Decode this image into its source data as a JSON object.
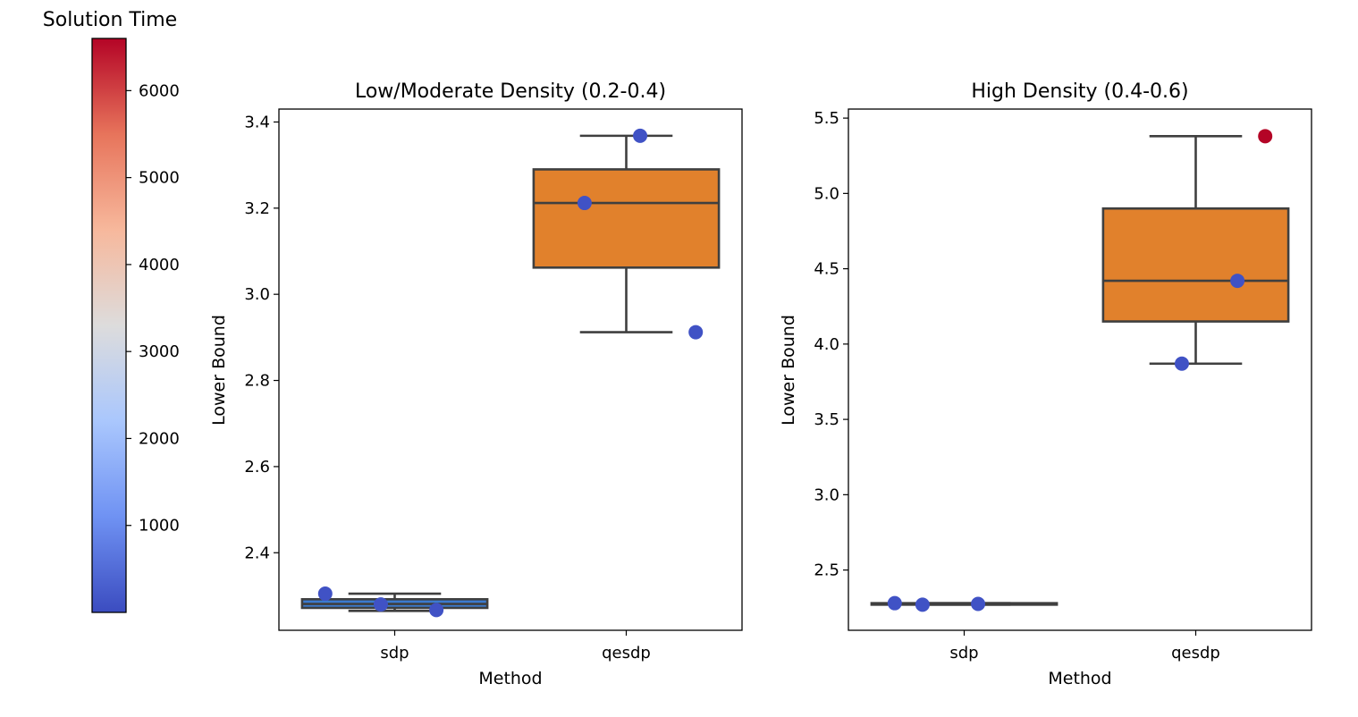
{
  "colorbar": {
    "label": "Solution Time",
    "ticks": [
      1000,
      2000,
      3000,
      4000,
      5000,
      6000
    ],
    "min": 0,
    "max": 6600,
    "colormap": "coolwarm",
    "colors": [
      "#3b4cc0",
      "#6f92f3",
      "#aac7fd",
      "#dddcdc",
      "#f7b89c",
      "#e7745b",
      "#b40426"
    ]
  },
  "box_color": "#e1812c",
  "box_edge_color": "#3f3f3f",
  "chart_data": [
    {
      "type": "box",
      "title": "Low/Moderate Density (0.2-0.4)",
      "xlabel": "Method",
      "ylabel": "Lower Bound",
      "categories": [
        "sdp",
        "qesdp"
      ],
      "ylim": [
        2.22,
        3.43
      ],
      "yticks": [
        2.4,
        2.6,
        2.8,
        3.0,
        3.2,
        3.4
      ],
      "boxes": [
        {
          "category": "sdp",
          "whislo": 2.265,
          "q1": 2.272,
          "med": 2.281,
          "q3": 2.292,
          "whishi": 2.305,
          "fill": "#3b7bd0"
        },
        {
          "category": "qesdp",
          "whislo": 2.912,
          "q1": 3.062,
          "med": 3.212,
          "q3": 3.29,
          "whishi": 3.368,
          "fill": "#e1812c"
        }
      ],
      "points": [
        {
          "category": "sdp",
          "offset": -0.3,
          "value": 2.305,
          "time": 100
        },
        {
          "category": "sdp",
          "offset": -0.06,
          "value": 2.28,
          "time": 100
        },
        {
          "category": "sdp",
          "offset": 0.18,
          "value": 2.267,
          "time": 100
        },
        {
          "category": "qesdp",
          "offset": -0.18,
          "value": 3.212,
          "time": 100
        },
        {
          "category": "qesdp",
          "offset": 0.06,
          "value": 3.368,
          "time": 100
        },
        {
          "category": "qesdp",
          "offset": 0.3,
          "value": 2.912,
          "time": 100
        }
      ]
    },
    {
      "type": "box",
      "title": "High Density (0.4-0.6)",
      "xlabel": "Method",
      "ylabel": "Lower Bound",
      "categories": [
        "sdp",
        "qesdp"
      ],
      "ylim": [
        2.1,
        5.56
      ],
      "yticks": [
        2.5,
        3.0,
        3.5,
        4.0,
        4.5,
        5.0,
        5.5
      ],
      "boxes": [
        {
          "category": "sdp",
          "whislo": 2.27,
          "q1": 2.27,
          "med": 2.275,
          "q3": 2.28,
          "whishi": 2.28,
          "fill": "#3b7bd0"
        },
        {
          "category": "qesdp",
          "whislo": 3.87,
          "q1": 4.15,
          "med": 4.42,
          "q3": 4.9,
          "whishi": 5.38,
          "fill": "#e1812c"
        }
      ],
      "points": [
        {
          "category": "sdp",
          "offset": -0.3,
          "value": 2.28,
          "time": 100
        },
        {
          "category": "sdp",
          "offset": -0.18,
          "value": 2.27,
          "time": 100
        },
        {
          "category": "sdp",
          "offset": 0.06,
          "value": 2.275,
          "time": 100
        },
        {
          "category": "qesdp",
          "offset": -0.06,
          "value": 3.87,
          "time": 100
        },
        {
          "category": "qesdp",
          "offset": 0.18,
          "value": 4.42,
          "time": 100
        },
        {
          "category": "qesdp",
          "offset": 0.3,
          "value": 5.38,
          "time": 6600
        }
      ]
    }
  ]
}
